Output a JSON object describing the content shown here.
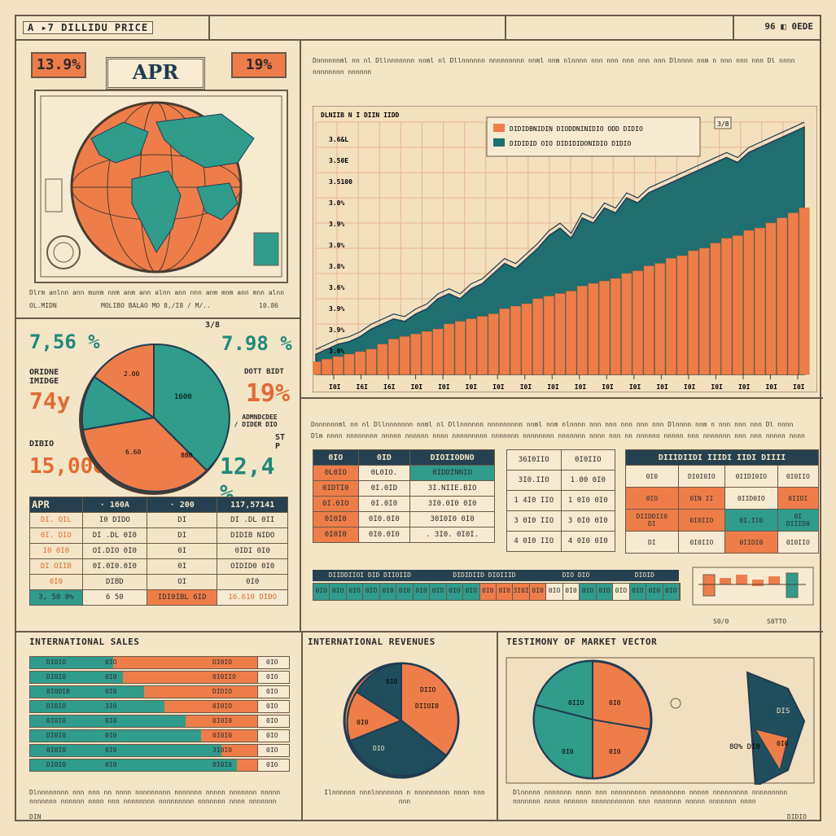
{
  "header": {
    "title": "A ▸7 DILLIDU PRICE",
    "right": "96 ◧ 0EDE"
  },
  "left_top": {
    "badge_left": "13.9%",
    "badge_right": "19%",
    "apr_label": "APR",
    "caption": "Dlrm anlnn ann munm nnm anm ann alnn ann nnn anm mnm ann mnn alnn nnn ann amn",
    "caption_left": "OL.MIDN",
    "caption_mid": "MOLIBO BALAO MO 8,/I8 / M/..",
    "caption_right": "10.86"
  },
  "kpis": {
    "k1": "7,56 %",
    "k1_top": "3/8",
    "k2": "7.98 %",
    "l1": "ORIDNE\nIMIDGE",
    "k3": "74y",
    "k4": "19%",
    "k4_label": "DOTT BIDT",
    "k5_label": "ADMNDCDEE\nO / DIDER DIO",
    "l2": "DIBIO",
    "k6": "15,00o",
    "k7": "12,4 %",
    "k7_top": "ST\nP",
    "pie_labels": [
      "2.00",
      "1600",
      "6.60",
      "8B0"
    ]
  },
  "chart_data": {
    "type": "area",
    "title": "DLNIIB N I DIIN IIDD",
    "legend": [
      "DIDIDBNIDIN DIODDNINIDIO ODD DIDIO",
      "DIDIDID OIO DIDIDIDONIDIO DIDIO"
    ],
    "legend_badge": "3/8",
    "yticks": [
      "3.6&L",
      "3.50E",
      "3.5100",
      "3.0%",
      "3.9%",
      "3.0%",
      "3.8%",
      "3.6%",
      "3.9%",
      "3.9%",
      "3.0%"
    ],
    "xticks": [
      "I0I",
      "I6I",
      "I6I",
      "I0I",
      "I0I",
      "I0I",
      "I0I",
      "I0I",
      "I0I",
      "I0I",
      "I0I",
      "I0I",
      "I0I",
      "I0I",
      "I0I",
      "I0I",
      "I0I",
      "I0I"
    ],
    "ylim": [
      0,
      100
    ],
    "series": [
      {
        "name": "DIDIDID OIO DIDIDIDONIDIO DIDIO",
        "color": "#1f6e70",
        "values": [
          8,
          10,
          12,
          13,
          15,
          18,
          20,
          22,
          21,
          24,
          26,
          30,
          32,
          30,
          34,
          36,
          40,
          44,
          42,
          46,
          50,
          55,
          58,
          54,
          62,
          60,
          66,
          64,
          70,
          68,
          72,
          74,
          76,
          78,
          80,
          82,
          84,
          86,
          84,
          88,
          90,
          92,
          94,
          96,
          98
        ]
      },
      {
        "name": "DIDIDBNIDIN DIODDNINIDIO ODD DIDIO",
        "color": "#ef7d4a",
        "values": [
          5,
          6,
          7,
          8,
          9,
          10,
          12,
          14,
          15,
          16,
          17,
          18,
          20,
          21,
          22,
          23,
          24,
          26,
          27,
          28,
          30,
          31,
          32,
          33,
          35,
          36,
          37,
          38,
          40,
          41,
          43,
          44,
          46,
          47,
          49,
          50,
          52,
          54,
          55,
          57,
          58,
          60,
          62,
          64,
          66
        ]
      }
    ]
  },
  "mid_caption": {
    "line1": "Dnnnnnnml nn nl Dllnnnnnnn nnml nl Dllnnnnnn nnnnnnnnn nnml nnm nlnnnn nnn nnn nnn nnn nnn Dlnnnn nnm n nnn nnn nnn Dl nnnn nnnnnnnn nnnnnn",
    "line2": "Dlm nnnn nnnnnnnn nnnnn nnnnnn nnnn nnnnnnnnn nnnnnnn nnnnnnnn nnnnnnn nnnn nnn nn nnnnnn nnnnn nnn nnnnnnn nnn nnn nnnnn nnnn nnnn nnn nnn DIIIIL"
  },
  "apr_table": {
    "headers": [
      "APR",
      "· 160A",
      "· 200",
      "117,57141"
    ],
    "rows": [
      [
        "DI. OIL",
        "I0 DIDO",
        "DI",
        "DI .DL 0II"
      ],
      [
        "0I. DIO",
        "DI .DL 0I0",
        "DI",
        "DIDIB NIDO"
      ],
      [
        "I0 0I0",
        "OI.DIO 0I0",
        "0I",
        "0IDI 0I0"
      ],
      [
        "DI OIIB",
        "0I.0I0.0I0",
        "0I",
        "OIDID0 0I0"
      ],
      [
        "0I0",
        "DIBD",
        "OI",
        "0I0"
      ]
    ],
    "foot": [
      "3, 50 0%",
      "6 50",
      "IDI0IBL 6ID",
      "16.610 DIDO"
    ]
  },
  "tbl_a": {
    "headers": [
      "0IO",
      "0ID",
      "DIOIIODNO"
    ],
    "rows": [
      [
        "0L0IO",
        "0L0IO.",
        "0IDDINNIO"
      ],
      [
        "0IDTI0",
        "0I.0ID",
        "3I.NIIE.BIO"
      ],
      [
        "0I.0IO",
        "0I.0I0",
        "3I0.0I0 0I0"
      ],
      [
        "0I0I0",
        "0I0.0I0",
        "30I0I0 0I0"
      ],
      [
        "0I0I0",
        "0I0.0I0",
        ". 3I0. 0I0I."
      ]
    ]
  },
  "tbl_b": {
    "rows": [
      [
        "36I0IIO",
        "0I0IIO"
      ],
      [
        "3I0.IIO",
        "1 00 0I0"
      ],
      [
        "1 4I0 IIO",
        "1 0I0 0I0"
      ],
      [
        "3 0I0 IIO",
        "3 0I0 0I0"
      ],
      [
        "4 0I0 IIO",
        "4 0I0 0I0"
      ]
    ]
  },
  "tbl_c": {
    "header": "DIIIDIIDI IIIDI IIDI DIIII",
    "rows": [
      [
        "0I0",
        "DI0I0IO",
        "0IIDI0IO",
        "0I0IIO"
      ],
      [
        "0IO",
        "0IN II",
        "0IID0IO",
        "0IIDI"
      ],
      [
        "DIIDDII0\nDI",
        "0I0IIO",
        "0I.II0",
        "0I\nDIIID0"
      ],
      [
        "DI",
        "0I0IIO",
        "0IIDI0",
        "0I0IIO"
      ]
    ]
  },
  "strip": {
    "header": [
      "DIIDDIIOI DID DIIOIID",
      "DIDIDIID DIOIIID",
      "DIO DIO",
      "DIOID"
    ],
    "cells": [
      "0IO",
      "0IO",
      "0IO",
      "0IO",
      "0I0",
      "0I0",
      "0I0",
      "0IO",
      "0IO",
      "0IO",
      "0I0",
      "0I0",
      "3I0I0",
      "0I0",
      "0IO",
      "0I0",
      "0IO",
      "0IO",
      "0IO",
      "0IO",
      "0I0",
      "0IO"
    ]
  },
  "strip_foot": {
    "a": "S0/0",
    "b": "S0TTO"
  },
  "bottom": {
    "t1": "INTERNATIONAL SALES",
    "t2": "INTERNATIONAL REVENUES",
    "t3": "TESTIMONY OF MARKET VECTOR",
    "sales_rows": [
      {
        "left": "DI0IO",
        "mid": "0IO",
        "right": "DI0IO",
        "end": "0IO",
        "frac": 0.32
      },
      {
        "left": "DI0I0",
        "mid": "0I0",
        "right": "0I0IIO",
        "end": "0IO",
        "frac": 0.36
      },
      {
        "left": "0I0DIB",
        "mid": "0I0",
        "right": "DIDIO",
        "end": "0IO",
        "frac": 0.44
      },
      {
        "left": "DI0IO",
        "mid": "3I0",
        "right": "0I0IO",
        "end": "0IO",
        "frac": 0.52
      },
      {
        "left": "0I0I0",
        "mid": "0I0",
        "right": "0I0I0",
        "end": "0IO",
        "frac": 0.6
      },
      {
        "left": "DI0I0",
        "mid": "0I0",
        "right": "0I0I0",
        "end": "0IO",
        "frac": 0.66
      },
      {
        "left": "0I0I0",
        "mid": "0I0",
        "right": "3I0I0",
        "end": "0IO",
        "frac": 0.74
      },
      {
        "left": "DI0I0",
        "mid": "0I0",
        "right": "0I0I0",
        "end": "0IO",
        "frac": 0.8
      }
    ],
    "sales_caption": "Dlnnnnnnnn nnn nnn nn nnnn nnnnnnnnn nnnnnnn nnnnn nnnnnnn nnnnn nnnnnnn nnnnnn nnnn nnn nnnnnnnn nnnnnnnnn nnnnnnn nnnn nnnnnnn nnnn nnnnn nnnnn",
    "rev_caption": "Ilnnnnnn nnnlnnnnnnn n nnnnnnnnn nnnn nnn nnn\nnnn nnn nnn nnn nnn nnn nnn nnn nnn nnn nnnn.",
    "mkt_caption": "Dlnnnnn nnnnnnn nnnn nnn nnnnnnnnn nnnnnnnnn nnnnn nnnnnnnnn nnnnnnnnn nnnnnnn nnnn nnnnnn nnnnnnnnnnn nnn nnnnnnn nnnnn nnnnnnn nnnn",
    "rev_labels": [
      "0I0",
      "DIIO",
      "DIIOI0",
      "DIO",
      "0I0"
    ],
    "mkt_labels": [
      "0IIO",
      "0I0",
      "0I0",
      "0I0",
      "DIS",
      "0I0",
      "8O%\nDI0"
    ]
  },
  "footer": {
    "left": "DIN",
    "right": "DIDIO"
  }
}
